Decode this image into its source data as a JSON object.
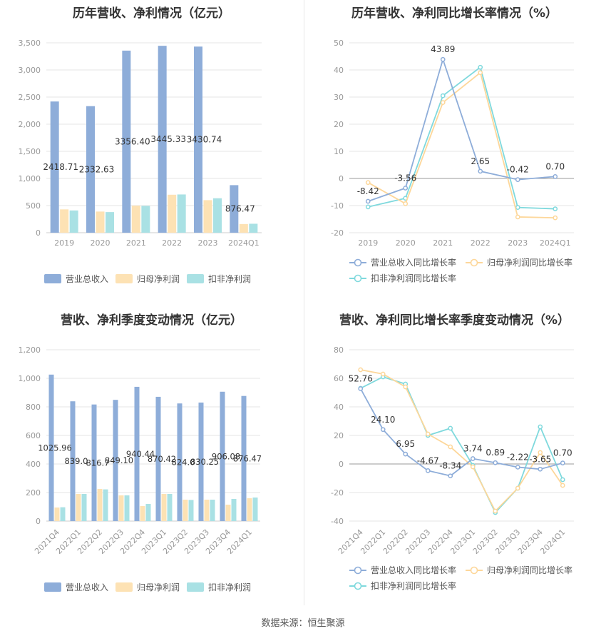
{
  "colors": {
    "revenue": "#8eadd9",
    "net_profit": "#fde2b4",
    "deducted_profit": "#a9e1e4",
    "rev_line": "#8eadd9",
    "np_line": "#fdd79a",
    "dp_line": "#7fd9dd",
    "grid": "#e6e6e6",
    "axis_text": "#999999",
    "label_text": "#333333"
  },
  "source_label": "数据来源：恒生聚源",
  "chart_data": [
    {
      "id": "annual_values",
      "type": "bar",
      "title": "历年营收、净利情况（亿元）",
      "categories": [
        "2019",
        "2020",
        "2021",
        "2022",
        "2023",
        "2024Q1"
      ],
      "ylim": [
        0,
        3500
      ],
      "yticks": [
        "0",
        "500",
        "1,000",
        "1,500",
        "2,000",
        "2,500",
        "3,000",
        "3,500"
      ],
      "series": [
        {
          "name": "营业总收入",
          "values": [
            2418.71,
            2332.63,
            3356.4,
            3445.33,
            3430.74,
            876.47
          ]
        },
        {
          "name": "归母净利润",
          "values": [
            430,
            390,
            500,
            700,
            600,
            160
          ]
        },
        {
          "name": "扣非净利润",
          "values": [
            410,
            380,
            495,
            705,
            635,
            165
          ]
        }
      ],
      "data_labels": [
        "2418.71",
        "2332.63",
        "3356.40",
        "3445.33",
        "3430.74",
        "876.47"
      ],
      "legend": [
        "营业总收入",
        "归母净利润",
        "扣非净利润"
      ]
    },
    {
      "id": "annual_growth",
      "type": "line",
      "title": "历年营收、净利同比增长率情况（%）",
      "categories": [
        "2019",
        "2020",
        "2021",
        "2022",
        "2023",
        "2024Q1"
      ],
      "ylim": [
        -20,
        50
      ],
      "yticks": [
        "-20",
        "-10",
        "0",
        "10",
        "20",
        "30",
        "40",
        "50"
      ],
      "series": [
        {
          "name": "营业总收入同比增长率",
          "values": [
            -8.42,
            -3.56,
            43.89,
            2.65,
            -0.42,
            0.7
          ]
        },
        {
          "name": "归母净利润同比增长率",
          "values": [
            -1.5,
            -9.3,
            28.0,
            39.0,
            -14.2,
            -14.5
          ]
        },
        {
          "name": "扣非净利润同比增长率",
          "values": [
            -10.5,
            -7.3,
            30.5,
            41.0,
            -10.7,
            -11.2
          ]
        }
      ],
      "data_labels": [
        "-8.42",
        "-3.56",
        "43.89",
        "2.65",
        "-0.42",
        "0.70"
      ],
      "legend": [
        "营业总收入同比增长率",
        "归母净利润同比增长率",
        "扣非净利润同比增长率"
      ]
    },
    {
      "id": "quarterly_values",
      "type": "bar",
      "title": "营收、净利季度变动情况（亿元）",
      "categories": [
        "2021Q4",
        "2022Q1",
        "2022Q2",
        "2022Q3",
        "2022Q4",
        "2023Q1",
        "2023Q2",
        "2023Q3",
        "2023Q4",
        "2024Q1"
      ],
      "ylim": [
        0,
        1200
      ],
      "yticks": [
        "0",
        "200",
        "400",
        "600",
        "800",
        "1,000",
        "1,200"
      ],
      "series": [
        {
          "name": "营业总收入",
          "values": [
            1025.96,
            839.0,
            816.7,
            849.1,
            940.44,
            870.42,
            824.0,
            830.25,
            906.08,
            876.47
          ]
        },
        {
          "name": "归母净利润",
          "values": [
            95,
            190,
            225,
            180,
            105,
            190,
            150,
            150,
            115,
            160
          ]
        },
        {
          "name": "扣非净利润",
          "values": [
            97,
            190,
            222,
            180,
            120,
            190,
            148,
            150,
            155,
            165
          ]
        }
      ],
      "data_labels": [
        "1025.96",
        "839.0",
        "816.7",
        "849.10",
        "940.44",
        "870.42",
        "824.0",
        "830.25",
        "906.08",
        "876.47"
      ],
      "legend": [
        "营业总收入",
        "归母净利润",
        "扣非净利润"
      ]
    },
    {
      "id": "quarterly_growth",
      "type": "line",
      "title": "营收、净利同比增长率季度变动情况（%）",
      "categories": [
        "2021Q4",
        "2022Q1",
        "2022Q2",
        "2022Q3",
        "2022Q4",
        "2023Q1",
        "2023Q2",
        "2023Q3",
        "2023Q4",
        "2024Q1"
      ],
      "ylim": [
        -40,
        80
      ],
      "yticks": [
        "-40",
        "-20",
        "0",
        "20",
        "40",
        "60",
        "80"
      ],
      "series": [
        {
          "name": "营业总收入同比增长率",
          "values": [
            52.76,
            24.1,
            6.95,
            -4.67,
            -8.34,
            3.74,
            0.89,
            -2.22,
            -3.65,
            0.7
          ]
        },
        {
          "name": "归母净利润同比增长率",
          "values": [
            66,
            63,
            54,
            21,
            12,
            -2,
            -33,
            -17,
            8,
            -15
          ]
        },
        {
          "name": "扣非净利润同比增长率",
          "values": [
            53,
            61,
            56,
            20,
            25,
            -1,
            -34,
            -17,
            26,
            -11
          ]
        }
      ],
      "data_labels": [
        "52.76",
        "24.10",
        "6.95",
        "-4.67",
        "-8.34",
        "3.74",
        "0.89",
        "-2.22",
        "-3.65",
        "0.70"
      ],
      "legend": [
        "营业总收入同比增长率",
        "归母净利润同比增长率",
        "扣非净利润同比增长率"
      ]
    }
  ]
}
